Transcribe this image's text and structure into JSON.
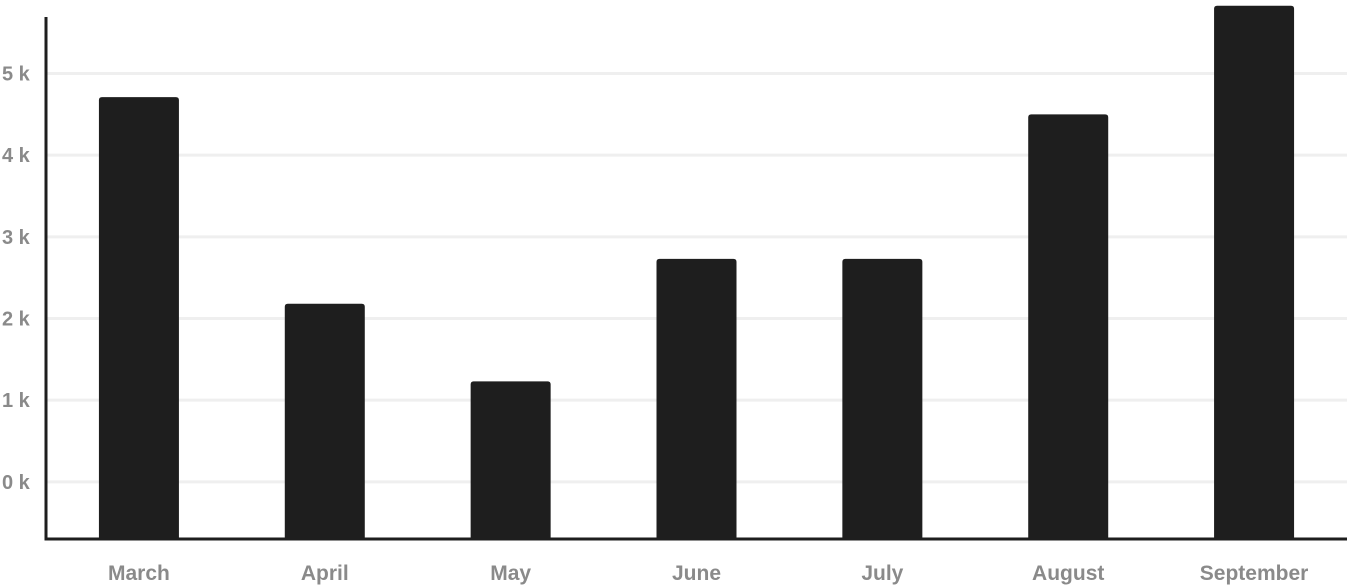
{
  "chart_data": {
    "type": "bar",
    "title": "",
    "xlabel": "",
    "ylabel": "",
    "categories": [
      "March",
      "April",
      "May",
      "June",
      "July",
      "August",
      "September"
    ],
    "values": [
      4710,
      2180,
      1230,
      2730,
      2730,
      4500,
      5830
    ],
    "ylim": [
      -700,
      5900
    ],
    "y_ticks": [
      0,
      1000,
      2000,
      3000,
      4000,
      5000
    ],
    "y_tick_labels": [
      "0 k",
      "1 k",
      "2 k",
      "3 k",
      "4 k",
      "5 k"
    ],
    "grid": true,
    "legend": "none",
    "colors": {
      "bar": "#1e1e1e",
      "axis": "#1e1e1e",
      "grid": "#efefef",
      "label": "#8a8a8a"
    }
  }
}
